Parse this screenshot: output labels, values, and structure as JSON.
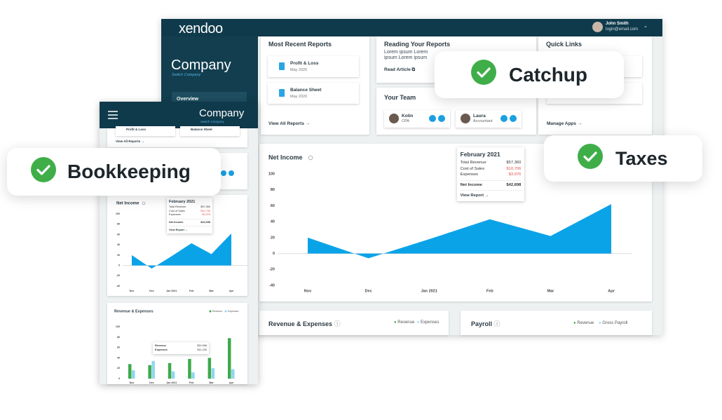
{
  "badges": {
    "catchup": "Catchup",
    "taxes": "Taxes",
    "bookkeeping": "Bookkeeping"
  },
  "app": {
    "logo": "xendoo",
    "user_name": "John Smith",
    "user_email": "login@email.com",
    "company": "Company",
    "switch_company": "Switch Company",
    "nav": [
      "Overview"
    ]
  },
  "recent_reports": {
    "title": "Most Recent Reports",
    "items": [
      {
        "name": "Profit & Loss",
        "date": "May 2020"
      },
      {
        "name": "Balance Sheet",
        "date": "May 2020"
      }
    ],
    "link": "View All Reports"
  },
  "reading": {
    "title": "Reading Your Reports",
    "text": "Lorem ipsum Lorem ipsum Lorem ipsum",
    "link": "Read Article"
  },
  "team": {
    "title": "Your Team",
    "members": [
      {
        "name": "Kolin",
        "role": "CPA"
      },
      {
        "name": "Laura",
        "role": "Accountant"
      }
    ]
  },
  "quick_links": {
    "title": "Quick Links",
    "link": "Manage Apps"
  },
  "payroll": {
    "title": "Payroll",
    "legend": [
      "Revenue",
      "Gross Payroll"
    ]
  },
  "chart_data": [
    {
      "type": "area",
      "title": "Net Income",
      "categories": [
        "Nov",
        "Dec",
        "Jan 2021",
        "Feb",
        "Mar",
        "Apr"
      ],
      "values": [
        20,
        -6,
        18,
        43,
        22,
        62
      ],
      "color": "#0ba3e8",
      "ylim": [
        -40,
        100
      ],
      "yticks": [
        -40,
        -20,
        0,
        20,
        40,
        60,
        80,
        100
      ],
      "tooltip": {
        "title": "February 2021",
        "rows": [
          {
            "label": "Total Revenue",
            "value": "$57,360"
          },
          {
            "label": "Cost of Sales",
            "value": "$10,706"
          },
          {
            "label": "Expenses",
            "value": "$3,976"
          }
        ],
        "total": {
          "label": "Net Income",
          "value": "$42,698"
        },
        "link": "View Report"
      }
    },
    {
      "type": "bar",
      "title": "Revenue & Expenses",
      "categories": [
        "Nov",
        "Dec",
        "Jan 2021",
        "Feb",
        "Mar",
        "Apr"
      ],
      "series": [
        {
          "name": "Revenue",
          "color": "#3daa4b",
          "values": [
            28,
            26,
            30,
            38,
            40,
            78
          ]
        },
        {
          "name": "Expenses",
          "color": "#8fd6f0",
          "values": [
            16,
            34,
            14,
            12,
            20,
            18
          ]
        }
      ],
      "ylim": [
        0,
        100
      ],
      "yticks": [
        0,
        20,
        40,
        60,
        80,
        100
      ],
      "tooltip": {
        "rows": [
          {
            "label": "Revenue",
            "value": "$30,998"
          },
          {
            "label": "Expenses",
            "value": "$11,230"
          }
        ]
      }
    }
  ]
}
